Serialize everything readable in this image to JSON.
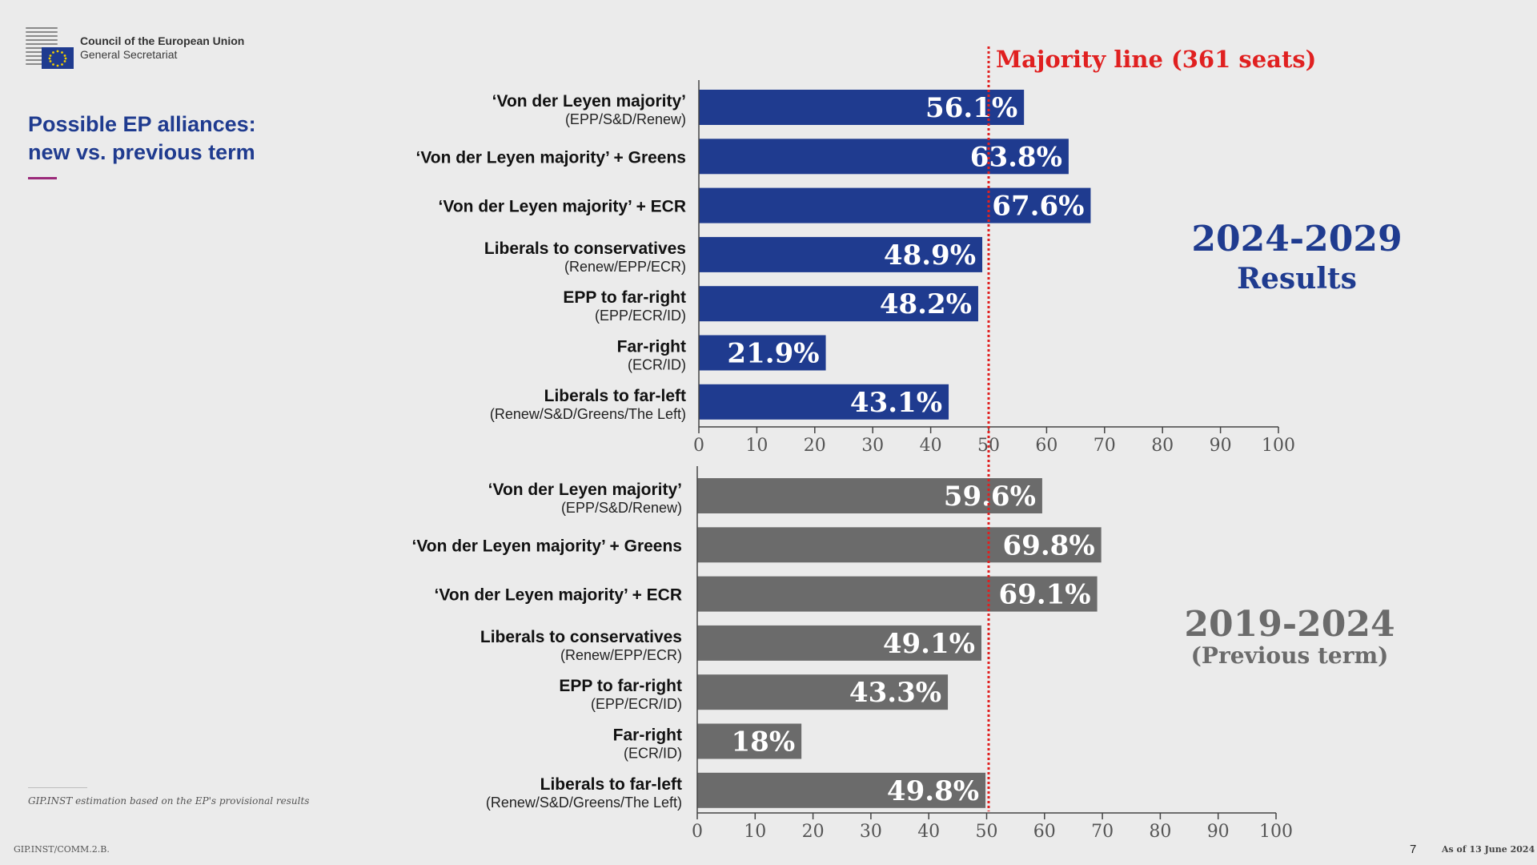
{
  "header": {
    "org_line1": "Council of the European Union",
    "org_line2": "General Secretariat",
    "title_line1": "Possible EP alliances:",
    "title_line2": "new vs. previous term"
  },
  "footer": {
    "footnote": "GIP.INST estimation based on the EP's provisional results",
    "code": "GIP.INST/COMM.2.B.",
    "page_number": "7",
    "date_note": "As of 13 June 2024"
  },
  "colors": {
    "current_term": "#1f3b8f",
    "previous_term": "#6b6b6b",
    "majority_line": "#e02020",
    "title_accent": "#9b2a7a"
  },
  "chart_data": [
    {
      "type": "bar",
      "orientation": "horizontal",
      "period_title": "2024-2029",
      "period_subtitle": "Results",
      "categories": [
        {
          "name": "‘Von der Leyen majority’",
          "sub": "(EPP/S&D/Renew)"
        },
        {
          "name": "‘Von der Leyen majority’ + Greens",
          "sub": ""
        },
        {
          "name": "‘Von der Leyen majority’ + ECR",
          "sub": ""
        },
        {
          "name": "Liberals to conservatives",
          "sub": "(Renew/EPP/ECR)"
        },
        {
          "name": "EPP to far-right",
          "sub": "(EPP/ECR/ID)"
        },
        {
          "name": "Far-right",
          "sub": "(ECR/ID)"
        },
        {
          "name": "Liberals to far-left",
          "sub": "(Renew/S&D/Greens/The Left)"
        }
      ],
      "values": [
        56.1,
        63.8,
        67.6,
        48.9,
        48.2,
        21.9,
        43.1
      ],
      "value_labels": [
        "56.1%",
        "63.8%",
        "67.6%",
        "48.9%",
        "48.2%",
        "21.9%",
        "43.1%"
      ],
      "xlim": [
        0,
        100
      ],
      "xticks": [
        0,
        10,
        20,
        30,
        40,
        50,
        60,
        70,
        80,
        90,
        100
      ],
      "reference_line": {
        "value": 50,
        "label": "Majority line (361 seats)"
      }
    },
    {
      "type": "bar",
      "orientation": "horizontal",
      "period_title": "2019-2024",
      "period_subtitle": "(Previous term)",
      "categories": [
        {
          "name": "‘Von der Leyen majority’",
          "sub": "(EPP/S&D/Renew)"
        },
        {
          "name": "‘Von der Leyen majority’ + Greens",
          "sub": ""
        },
        {
          "name": "‘Von der Leyen majority’ + ECR",
          "sub": ""
        },
        {
          "name": "Liberals to conservatives",
          "sub": "(Renew/EPP/ECR)"
        },
        {
          "name": "EPP to far-right",
          "sub": "(EPP/ECR/ID)"
        },
        {
          "name": "Far-right",
          "sub": "(ECR/ID)"
        },
        {
          "name": "Liberals to far-left",
          "sub": "(Renew/S&D/Greens/The Left)"
        }
      ],
      "values": [
        59.6,
        69.8,
        69.1,
        49.1,
        43.3,
        18,
        49.8
      ],
      "value_labels": [
        "59.6%",
        "69.8%",
        "69.1%",
        "49.1%",
        "43.3%",
        "18%",
        "49.8%"
      ],
      "xlim": [
        0,
        100
      ],
      "xticks": [
        0,
        10,
        20,
        30,
        40,
        50,
        60,
        70,
        80,
        90,
        100
      ],
      "reference_line": {
        "value": 50,
        "label": ""
      }
    }
  ]
}
